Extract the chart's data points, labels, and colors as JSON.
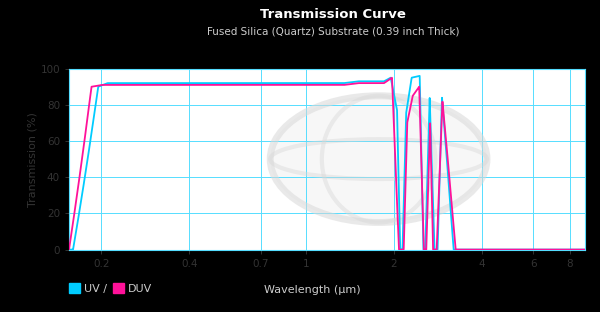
{
  "title": "Transmission Curve",
  "subtitle": "Fused Silica (Quartz) Substrate (0.39 inch Thick)",
  "xlabel": "Wavelength (μm)",
  "ylabel": "Transmission (%)",
  "figure_bg_color": "#000000",
  "plot_bg_color": "#ffffff",
  "grid_color": "#55ddff",
  "uv_color": "#00ccff",
  "duv_color": "#ff1199",
  "title_color": "#ffffff",
  "subtitle_color": "#cccccc",
  "axis_text_color": "#333333",
  "legend_text_color": "#cccccc",
  "legend_uv_label": "UV /",
  "legend_duv_label": "DUV",
  "ylim": [
    0,
    100
  ],
  "yticks": [
    0,
    20,
    40,
    60,
    80,
    100
  ],
  "xtick_positions": [
    0.2,
    0.4,
    0.7,
    1,
    2,
    4,
    6,
    8
  ],
  "xtick_labels": [
    "0.2",
    "0.4",
    "0.7",
    "1",
    "2",
    "4",
    "6",
    "8"
  ],
  "xmin": 0.155,
  "xmax": 9.0,
  "watermark_color": "#d8d8d8"
}
